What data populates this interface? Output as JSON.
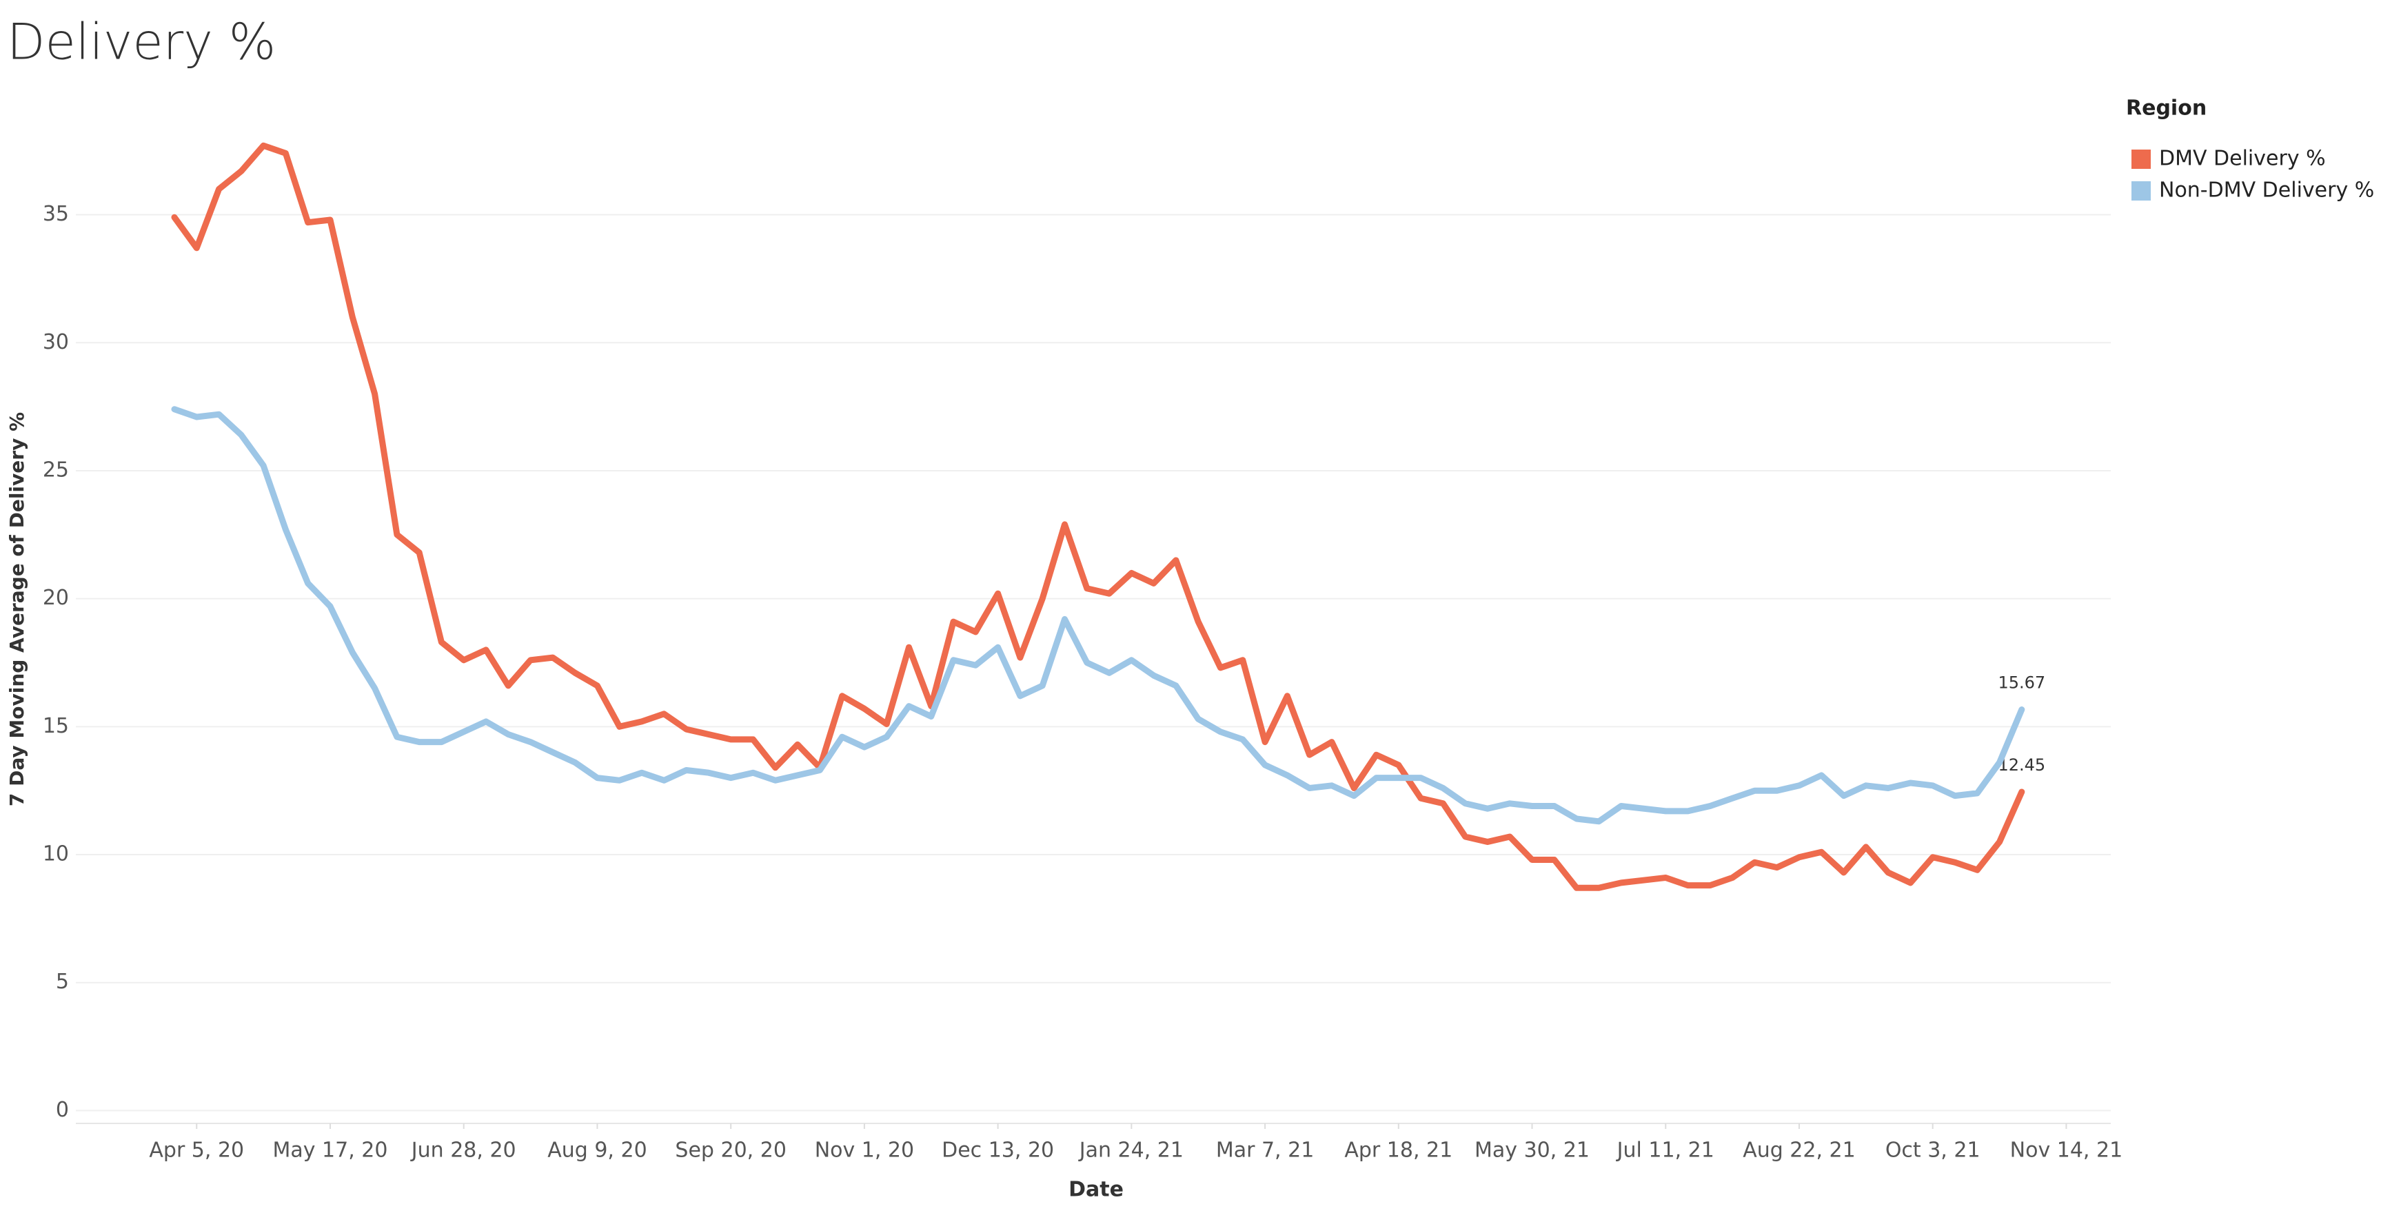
{
  "chart_data": {
    "type": "line",
    "title": "Delivery %",
    "x_label": "Date",
    "y_label": "7 Day Moving Average of Delivery %",
    "legend_title": "Region",
    "legend": "right",
    "grid": true,
    "x": [
      "2020-03-29",
      "2020-04-05",
      "2020-04-12",
      "2020-04-19",
      "2020-04-26",
      "2020-05-03",
      "2020-05-10",
      "2020-05-17",
      "2020-05-24",
      "2020-05-31",
      "2020-06-07",
      "2020-06-14",
      "2020-06-21",
      "2020-06-28",
      "2020-07-05",
      "2020-07-12",
      "2020-07-19",
      "2020-07-26",
      "2020-08-02",
      "2020-08-09",
      "2020-08-16",
      "2020-08-23",
      "2020-08-30",
      "2020-09-06",
      "2020-09-13",
      "2020-09-20",
      "2020-09-27",
      "2020-10-04",
      "2020-10-11",
      "2020-10-18",
      "2020-10-25",
      "2020-11-01",
      "2020-11-08",
      "2020-11-15",
      "2020-11-22",
      "2020-11-29",
      "2020-12-06",
      "2020-12-13",
      "2020-12-20",
      "2020-12-27",
      "2021-01-03",
      "2021-01-10",
      "2021-01-17",
      "2021-01-24",
      "2021-01-31",
      "2021-02-07",
      "2021-02-14",
      "2021-02-21",
      "2021-02-28",
      "2021-03-07",
      "2021-03-14",
      "2021-03-21",
      "2021-03-28",
      "2021-04-04",
      "2021-04-11",
      "2021-04-18",
      "2021-04-25",
      "2021-05-02",
      "2021-05-09",
      "2021-05-16",
      "2021-05-23",
      "2021-05-30",
      "2021-06-06",
      "2021-06-13",
      "2021-06-20",
      "2021-06-27",
      "2021-07-04",
      "2021-07-11",
      "2021-07-18",
      "2021-07-25",
      "2021-08-01",
      "2021-08-08",
      "2021-08-15",
      "2021-08-22",
      "2021-08-29",
      "2021-09-05",
      "2021-09-12",
      "2021-09-19",
      "2021-09-26",
      "2021-10-03",
      "2021-10-10",
      "2021-10-17",
      "2021-10-24",
      "2021-10-31"
    ],
    "series": [
      {
        "name": "DMV Delivery %",
        "color": "#ee6b4d",
        "values": [
          34.9,
          33.7,
          36,
          36.7,
          37.7,
          37.4,
          34.7,
          34.8,
          31,
          28,
          22.5,
          21.8,
          18.3,
          17.6,
          18,
          16.6,
          17.6,
          17.7,
          17.1,
          16.6,
          15,
          15.2,
          15.5,
          14.9,
          14.7,
          14.5,
          14.5,
          13.4,
          14.3,
          13.4,
          16.2,
          15.7,
          15.1,
          18.1,
          15.8,
          19.1,
          18.7,
          20.2,
          17.7,
          20,
          22.9,
          20.4,
          20.2,
          21,
          20.6,
          21.5,
          19.1,
          17.3,
          17.6,
          14.4,
          16.2,
          13.9,
          14.4,
          12.6,
          13.9,
          13.5,
          12.2,
          12,
          10.7,
          10.5,
          10.7,
          9.8,
          9.8,
          8.7,
          8.7,
          8.9,
          9,
          9.1,
          8.8,
          8.8,
          9.1,
          9.7,
          9.5,
          9.9,
          10.1,
          9.3,
          10.3,
          9.3,
          8.9,
          9.9,
          9.7,
          9.4,
          10.5,
          12.45
        ]
      },
      {
        "name": "Non-DMV Delivery %",
        "color": "#9dc6e6",
        "values": [
          27.4,
          27.1,
          27.2,
          26.4,
          25.2,
          22.7,
          20.6,
          19.7,
          17.9,
          16.5,
          14.6,
          14.4,
          14.4,
          14.8,
          15.2,
          14.7,
          14.4,
          14,
          13.6,
          13,
          12.9,
          13.2,
          12.9,
          13.3,
          13.2,
          13,
          13.2,
          12.9,
          13.1,
          13.3,
          14.6,
          14.2,
          14.6,
          15.8,
          15.4,
          17.6,
          17.4,
          18.1,
          16.2,
          16.6,
          19.2,
          17.5,
          17.1,
          17.6,
          17,
          16.6,
          15.3,
          14.8,
          14.5,
          13.5,
          13.1,
          12.6,
          12.7,
          12.3,
          13,
          13,
          13,
          12.6,
          12,
          11.8,
          12,
          11.9,
          11.9,
          11.4,
          11.3,
          11.9,
          11.8,
          11.7,
          11.7,
          11.9,
          12.2,
          12.5,
          12.5,
          12.7,
          13.1,
          12.3,
          12.7,
          12.6,
          12.8,
          12.7,
          12.3,
          12.4,
          13.6,
          15.67
        ]
      }
    ],
    "xlim": [
      "2020-02-27",
      "2021-11-28"
    ],
    "xticks": [
      {
        "value": "2020-04-05",
        "label": "Apr 5, 20"
      },
      {
        "value": "2020-05-17",
        "label": "May 17, 20"
      },
      {
        "value": "2020-06-28",
        "label": "Jun 28, 20"
      },
      {
        "value": "2020-08-09",
        "label": "Aug 9, 20"
      },
      {
        "value": "2020-09-20",
        "label": "Sep 20, 20"
      },
      {
        "value": "2020-11-01",
        "label": "Nov 1, 20"
      },
      {
        "value": "2020-12-13",
        "label": "Dec 13, 20"
      },
      {
        "value": "2021-01-24",
        "label": "Jan 24, 21"
      },
      {
        "value": "2021-03-07",
        "label": "Mar 7, 21"
      },
      {
        "value": "2021-04-18",
        "label": "Apr 18, 21"
      },
      {
        "value": "2021-05-30",
        "label": "May 30, 21"
      },
      {
        "value": "2021-07-11",
        "label": "Jul 11, 21"
      },
      {
        "value": "2021-08-22",
        "label": "Aug 22, 21"
      },
      {
        "value": "2021-10-03",
        "label": "Oct 3, 21"
      },
      {
        "value": "2021-11-14",
        "label": "Nov 14, 21"
      }
    ],
    "ylim": [
      -0.5,
      39.7
    ],
    "yticks": [
      0,
      5,
      10,
      15,
      20,
      25,
      30,
      35
    ]
  }
}
